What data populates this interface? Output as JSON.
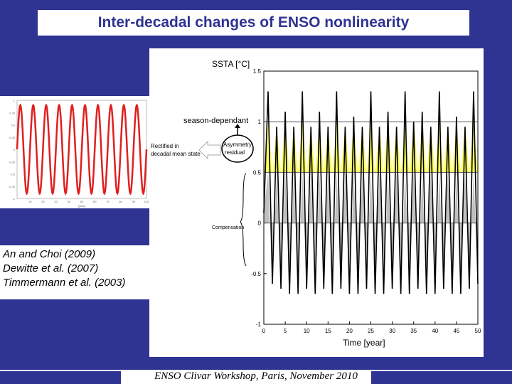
{
  "slide": {
    "title": "Inter-decadal changes of ENSO nonlinearity",
    "footer": "ENSO Clivar Workshop, Paris, November 2010",
    "references": [
      "An and Choi (2009)",
      "Dewitte et al. (2007)",
      "Timmermann et al. (2003)"
    ]
  },
  "colors": {
    "background": "#2f3392",
    "title_text": "#2f3392",
    "sine": "#e02020",
    "fill_yellow": "#ffff66",
    "fill_gray": "#c0c0c0"
  },
  "main_chart": {
    "ylabel": "SSTA [°C]",
    "xlabel": "Time [year]",
    "yticks": [
      "-1",
      "-0.5",
      "0",
      "0.5",
      "1",
      "1.5"
    ],
    "xticks": [
      "0",
      "5",
      "10",
      "15",
      "20",
      "25",
      "30",
      "35",
      "40",
      "45",
      "50"
    ],
    "annotations": {
      "season": "season-dependant",
      "asymmetry_1": "Asymmetry",
      "asymmetry_2": "residual",
      "rectified_1": "Rectified in",
      "rectified_2": "decadal mean state",
      "compensation": "Compensation"
    }
  },
  "chart_data": [
    {
      "type": "line",
      "title": "",
      "xlabel": "Time [year]",
      "ylabel": "SSTA [°C]",
      "xlim": [
        0,
        50
      ],
      "ylim": [
        -1,
        1.5
      ],
      "grid": false,
      "series": [
        {
          "x": [
            0,
            1,
            2,
            3,
            4,
            5,
            6,
            7,
            8,
            9,
            10,
            11,
            12,
            13,
            14,
            15,
            16,
            17,
            18,
            19,
            20,
            21,
            22,
            23,
            24,
            25,
            26,
            27,
            28,
            29,
            30,
            31,
            32,
            33,
            34,
            35,
            36,
            37,
            38,
            39,
            40,
            41,
            42,
            43,
            44,
            45,
            46,
            47,
            48,
            49,
            50
          ],
          "values": [
            0.1,
            1.3,
            -0.6,
            0.95,
            -0.65,
            1.1,
            -0.7,
            0.95,
            -0.7,
            1.3,
            -0.65,
            0.95,
            -0.7,
            1.1,
            -0.65,
            0.95,
            -0.7,
            1.3,
            -0.65,
            0.95,
            -0.7,
            1.05,
            -0.7,
            0.95,
            -0.65,
            1.3,
            -0.7,
            0.95,
            -0.7,
            1.1,
            -0.65,
            0.95,
            -0.7,
            1.3,
            -0.7,
            1.0,
            -0.65,
            1.1,
            -0.7,
            0.95,
            -0.7,
            1.3,
            -0.65,
            0.95,
            -0.7,
            1.05,
            -0.7,
            0.95,
            -0.65,
            1.3,
            -0.6
          ]
        }
      ]
    },
    {
      "type": "line",
      "title": "",
      "xlabel": "[year]",
      "ylabel": "",
      "xlim": [
        0,
        100
      ],
      "ylim": [
        -1,
        1
      ],
      "yticks": [
        "1",
        "0.75",
        "0.5",
        "0.25",
        "0",
        "-0.25",
        "-0.5",
        "-0.75",
        "-1"
      ],
      "xticks": [
        "10",
        "20",
        "30",
        "40",
        "50",
        "60",
        "70",
        "80",
        "90",
        "100"
      ],
      "series": [
        {
          "amplitude": 0.9,
          "period": 10
        }
      ]
    }
  ]
}
